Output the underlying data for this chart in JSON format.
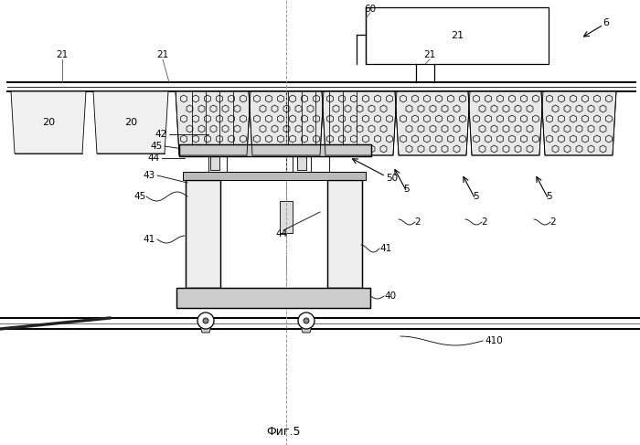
{
  "fig_label": "Фиг.5",
  "bg_color": "#ffffff",
  "line_color": "#000000",
  "fig_width": 7.0,
  "fig_height": 4.87,
  "dpi": 100
}
